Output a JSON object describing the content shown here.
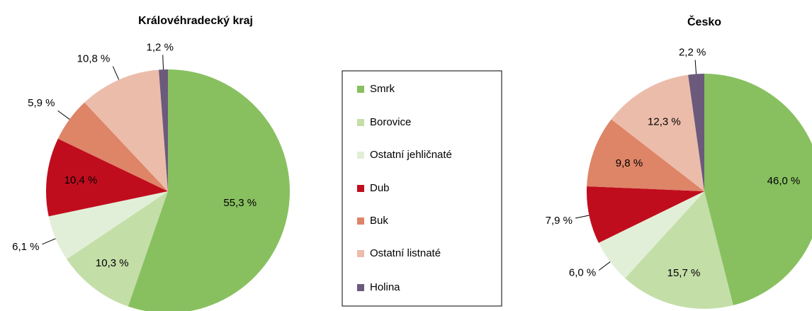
{
  "chart_data": [
    {
      "type": "pie",
      "title": "Královéhradecký kraj",
      "categories": [
        "Smrk",
        "Borovice",
        "Ostatní jehličnaté",
        "Dub",
        "Buk",
        "Ostatní listnaté",
        "Holina"
      ],
      "values": [
        55.3,
        10.3,
        6.1,
        10.4,
        5.9,
        10.8,
        1.2
      ],
      "value_labels": [
        "55,3 %",
        "10,3 %",
        "6,1 %",
        "10,4 %",
        "5,9 %",
        "10,8 %",
        "1,2 %"
      ],
      "colors": [
        "#88c060",
        "#c4dea8",
        "#e2efd8",
        "#c00d1e",
        "#de8467",
        "#ecbcaa",
        "#6b5a7c"
      ]
    },
    {
      "type": "pie",
      "title": "Česko",
      "categories": [
        "Smrk",
        "Borovice",
        "Ostatní jehličnaté",
        "Dub",
        "Buk",
        "Ostatní listnaté",
        "Holina"
      ],
      "values": [
        46.0,
        15.7,
        6.0,
        7.9,
        9.8,
        12.3,
        2.2
      ],
      "value_labels": [
        "46,0 %",
        "15,7 %",
        "6,0 %",
        "7,9 %",
        "9,8 %",
        "12,3 %",
        "2,2 %"
      ],
      "colors": [
        "#88c060",
        "#c4dea8",
        "#e2efd8",
        "#c00d1e",
        "#de8467",
        "#ecbcaa",
        "#6b5a7c"
      ]
    }
  ]
}
